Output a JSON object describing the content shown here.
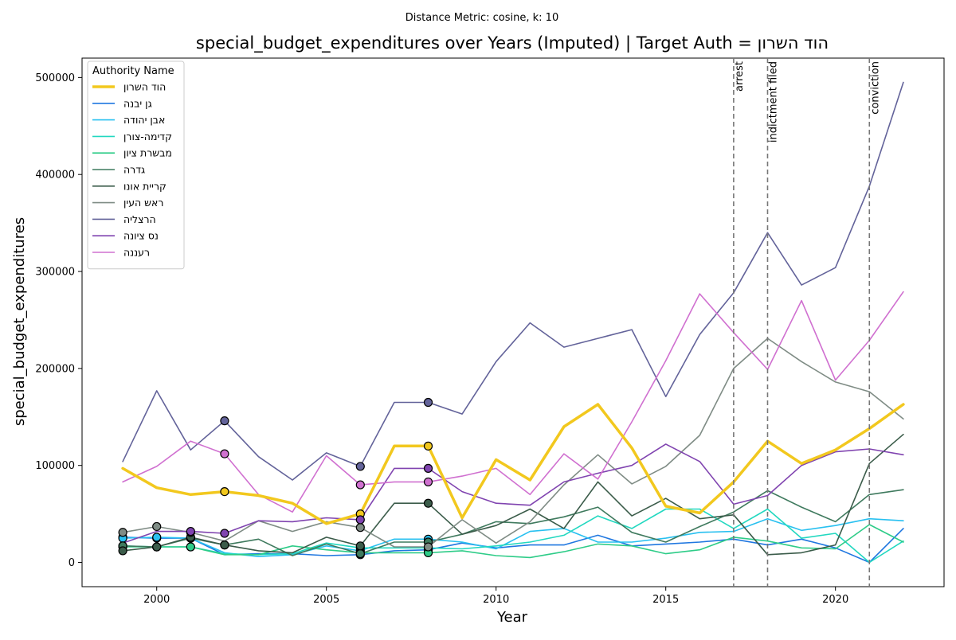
{
  "chart_data": {
    "type": "line",
    "suptitle": "Distance Metric: cosine, k: 10",
    "title": "special_budget_expenditures over Years (Imputed) | Target Auth = הוד השרון",
    "xlabel": "Year",
    "ylabel": "special_budget_expenditures",
    "xlim": [
      1997.8,
      2023.2
    ],
    "ylim": [
      -25000,
      520000
    ],
    "xticks": [
      2000,
      2005,
      2010,
      2015,
      2020
    ],
    "yticks": [
      0,
      100000,
      200000,
      300000,
      400000,
      500000
    ],
    "grid": false,
    "legend": {
      "title": "Authority Name",
      "placement": "upper-left"
    },
    "events": [
      {
        "year": 2017,
        "label": "arrest"
      },
      {
        "year": 2018,
        "label": "indictment filed"
      },
      {
        "year": 2021,
        "label": "conviction"
      }
    ],
    "x": [
      1999,
      2000,
      2001,
      2002,
      2003,
      2004,
      2005,
      2006,
      2007,
      2008,
      2009,
      2010,
      2011,
      2012,
      2013,
      2014,
      2015,
      2016,
      2017,
      2018,
      2019,
      2020,
      2021,
      2022
    ],
    "series": [
      {
        "name": "הוד השרון",
        "color": "#f2c81e",
        "target": true,
        "values": [
          97000,
          77000,
          70000,
          73000,
          69000,
          61000,
          40000,
          50000,
          120000,
          120000,
          46000,
          106000,
          85000,
          140000,
          163000,
          118000,
          58000,
          51000,
          83000,
          125000,
          102000,
          116000,
          138000,
          163000
        ],
        "imputed_years": [
          2002,
          2006,
          2008
        ]
      },
      {
        "name": "גן יבנה",
        "color": "#1f77e0",
        "values": [
          26000,
          25000,
          25000,
          8000,
          9000,
          9000,
          7000,
          8000,
          12000,
          13000,
          20000,
          15000,
          18000,
          18000,
          28000,
          17000,
          19000,
          21000,
          24000,
          18000,
          24000,
          15000,
          0,
          35000
        ],
        "imputed_years": [
          1999,
          2000,
          2001,
          2006,
          2008
        ]
      },
      {
        "name": "אבן יהודה",
        "color": "#28c0f0",
        "values": [
          25000,
          26000,
          25000,
          10000,
          6000,
          8000,
          17000,
          12000,
          24000,
          24000,
          21000,
          14000,
          32000,
          35000,
          21000,
          21000,
          25000,
          31000,
          32000,
          45000,
          33000,
          38000,
          45000,
          43000
        ],
        "imputed_years": [
          1999,
          2000,
          2001,
          2006,
          2008
        ]
      },
      {
        "name": "קדימה-צורן",
        "color": "#22d8c0",
        "values": [
          17000,
          16000,
          16000,
          9000,
          8000,
          9000,
          20000,
          15000,
          15000,
          15000,
          14000,
          17000,
          21000,
          28000,
          48000,
          35000,
          55000,
          55000,
          35000,
          55000,
          25000,
          30000,
          0,
          22000
        ],
        "imputed_years": [
          1999,
          2000,
          2001,
          2006,
          2008
        ]
      },
      {
        "name": "מבשרת ציון",
        "color": "#2ecc88",
        "values": [
          16000,
          16000,
          16000,
          8000,
          8000,
          17000,
          13000,
          10000,
          10000,
          10000,
          12000,
          7000,
          5000,
          11000,
          19000,
          17000,
          9000,
          13000,
          26000,
          22000,
          15000,
          14000,
          39000,
          21000
        ],
        "imputed_years": [
          1999,
          2000,
          2001,
          2006,
          2008
        ]
      },
      {
        "name": "גדרה",
        "color": "#3f7a5e",
        "values": [
          17000,
          16000,
          25000,
          18000,
          24000,
          7000,
          19000,
          9000,
          21000,
          21000,
          29000,
          42000,
          40000,
          47000,
          57000,
          31000,
          21000,
          37000,
          52000,
          74000,
          57000,
          42000,
          70000,
          75000
        ],
        "imputed_years": [
          1999,
          2000,
          2001,
          2002,
          2006,
          2008
        ]
      },
      {
        "name": "קריית אונו",
        "color": "#3b5c4a",
        "values": [
          12000,
          16000,
          26000,
          18000,
          12000,
          10000,
          26000,
          17000,
          61000,
          61000,
          29000,
          38000,
          55000,
          35000,
          83000,
          48000,
          66000,
          45000,
          49000,
          8000,
          10000,
          18000,
          102000,
          132000
        ],
        "imputed_years": [
          1999,
          2000,
          2001,
          2002,
          2006,
          2008
        ]
      },
      {
        "name": "ראש העין",
        "color": "#7f8c85",
        "values": [
          31000,
          37000,
          31000,
          22000,
          43000,
          32000,
          42000,
          36000,
          16000,
          16000,
          44000,
          20000,
          42000,
          80000,
          111000,
          81000,
          99000,
          131000,
          200000,
          231000,
          207000,
          186000,
          176000,
          148000
        ],
        "imputed_years": [
          1999,
          2000,
          2001,
          2006,
          2008
        ]
      },
      {
        "name": "הרצליה",
        "color": "#63639a",
        "values": [
          104000,
          177000,
          116000,
          146000,
          109000,
          85000,
          113000,
          99000,
          165000,
          165000,
          153000,
          207000,
          247000,
          222000,
          231000,
          240000,
          171000,
          235000,
          278000,
          340000,
          286000,
          304000,
          388000,
          495000
        ],
        "imputed_years": [
          2002,
          2006,
          2008
        ]
      },
      {
        "name": "נס ציונה",
        "color": "#8044b0",
        "values": [
          20000,
          32000,
          32000,
          30000,
          43000,
          42000,
          46000,
          44000,
          97000,
          97000,
          73000,
          61000,
          59000,
          83000,
          92000,
          100000,
          122000,
          104000,
          60000,
          69000,
          100000,
          114000,
          117000,
          111000
        ],
        "imputed_years": [
          2001,
          2002,
          2006,
          2008
        ]
      },
      {
        "name": "רעננה",
        "color": "#d070d0",
        "values": [
          83000,
          99000,
          125000,
          112000,
          70000,
          52000,
          110000,
          80000,
          83000,
          83000,
          89000,
          97000,
          70000,
          112000,
          86000,
          145000,
          208000,
          277000,
          237000,
          199000,
          270000,
          188000,
          229000,
          279000
        ],
        "imputed_years": [
          2002,
          2006,
          2008
        ]
      }
    ]
  }
}
